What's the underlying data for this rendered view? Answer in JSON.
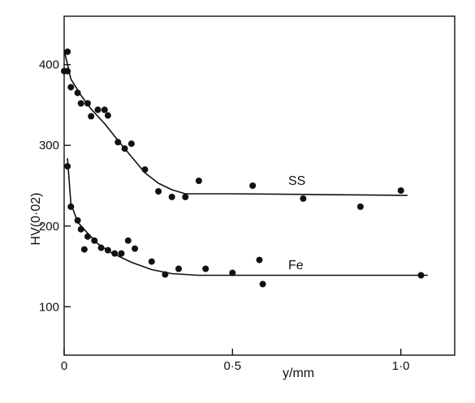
{
  "chart_data": {
    "type": "scatter",
    "xlabel": "y/mm",
    "ylabel": "HV(0·02)",
    "xlim": [
      0,
      1.16
    ],
    "ylim": [
      40,
      460
    ],
    "grid": false,
    "x_ticks": [
      {
        "value": 0,
        "label": "0"
      },
      {
        "value": 0.5,
        "label": "0·5"
      },
      {
        "value": 1.0,
        "label": "1·0"
      }
    ],
    "y_ticks": [
      {
        "value": 100,
        "label": "100"
      },
      {
        "value": 200,
        "label": "200"
      },
      {
        "value": 300,
        "label": "300"
      },
      {
        "value": 400,
        "label": "400"
      }
    ],
    "series": [
      {
        "name": "SS",
        "points": [
          [
            0.0,
            392
          ],
          [
            0.01,
            392
          ],
          [
            0.01,
            416
          ],
          [
            0.02,
            372
          ],
          [
            0.04,
            365
          ],
          [
            0.05,
            352
          ],
          [
            0.07,
            352
          ],
          [
            0.08,
            336
          ],
          [
            0.1,
            344
          ],
          [
            0.12,
            344
          ],
          [
            0.13,
            337
          ],
          [
            0.16,
            304
          ],
          [
            0.18,
            296
          ],
          [
            0.2,
            302
          ],
          [
            0.24,
            270
          ],
          [
            0.28,
            243
          ],
          [
            0.32,
            236
          ],
          [
            0.36,
            236
          ],
          [
            0.4,
            256
          ],
          [
            0.56,
            250
          ],
          [
            0.71,
            234
          ],
          [
            0.88,
            224
          ],
          [
            1.0,
            244
          ]
        ],
        "fit_curve": [
          [
            0.0,
            418
          ],
          [
            0.02,
            382
          ],
          [
            0.05,
            362
          ],
          [
            0.08,
            345
          ],
          [
            0.12,
            327
          ],
          [
            0.16,
            306
          ],
          [
            0.2,
            286
          ],
          [
            0.24,
            266
          ],
          [
            0.28,
            253
          ],
          [
            0.32,
            245
          ],
          [
            0.36,
            240
          ],
          [
            0.5,
            240
          ],
          [
            0.75,
            239
          ],
          [
            1.02,
            238
          ]
        ]
      },
      {
        "name": "Fe",
        "points": [
          [
            0.01,
            274
          ],
          [
            0.02,
            224
          ],
          [
            0.04,
            207
          ],
          [
            0.05,
            196
          ],
          [
            0.06,
            171
          ],
          [
            0.07,
            187
          ],
          [
            0.09,
            182
          ],
          [
            0.11,
            173
          ],
          [
            0.13,
            170
          ],
          [
            0.15,
            166
          ],
          [
            0.17,
            166
          ],
          [
            0.19,
            182
          ],
          [
            0.21,
            172
          ],
          [
            0.26,
            156
          ],
          [
            0.3,
            140
          ],
          [
            0.34,
            147
          ],
          [
            0.42,
            147
          ],
          [
            0.5,
            142
          ],
          [
            0.58,
            158
          ],
          [
            0.59,
            128
          ],
          [
            1.06,
            139
          ]
        ],
        "fit_curve": [
          [
            0.01,
            284
          ],
          [
            0.02,
            228
          ],
          [
            0.04,
            205
          ],
          [
            0.07,
            191
          ],
          [
            0.1,
            178
          ],
          [
            0.14,
            167
          ],
          [
            0.2,
            155
          ],
          [
            0.26,
            146
          ],
          [
            0.32,
            141
          ],
          [
            0.4,
            139
          ],
          [
            0.6,
            139
          ],
          [
            0.85,
            139
          ],
          [
            1.08,
            139
          ]
        ]
      }
    ]
  }
}
